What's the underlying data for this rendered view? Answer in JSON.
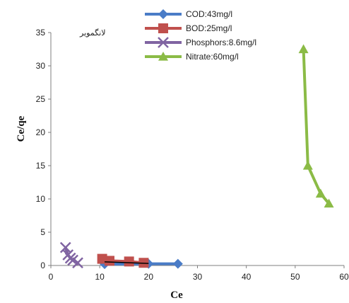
{
  "chart_data": {
    "type": "scatter",
    "annotation": "لانگمویر",
    "xlabel": "Ce",
    "ylabel": "Ce/qe",
    "xlim": [
      0,
      60
    ],
    "ylim": [
      0,
      35
    ],
    "xticks": [
      0,
      10,
      20,
      30,
      40,
      50,
      60
    ],
    "yticks": [
      0,
      5,
      10,
      15,
      20,
      25,
      30,
      35
    ],
    "grid": false,
    "legend_position": "top-center",
    "series": [
      {
        "name": "COD:43mg/l",
        "color": "#4a7cc7",
        "marker": "diamond",
        "x": [
          11,
          20,
          26
        ],
        "y": [
          0.2,
          0.25,
          0.25
        ]
      },
      {
        "name": "BOD:25mg/l",
        "color": "#c0504d",
        "marker": "square",
        "x": [
          10.5,
          12,
          16,
          19
        ],
        "y": [
          1.0,
          0.7,
          0.6,
          0.4
        ]
      },
      {
        "name": "Phosphors:8.6mg/l",
        "color": "#8064a2",
        "marker": "x",
        "x": [
          3,
          3.5,
          4,
          4.5,
          5.5
        ],
        "y": [
          2.7,
          1.6,
          1.1,
          0.8,
          0.4
        ]
      },
      {
        "name": "Nitrate:60mg/l",
        "color": "#8bbb46",
        "marker": "triangle",
        "x": [
          51.7,
          52.6,
          55.2,
          56.9
        ],
        "y": [
          32.5,
          15.0,
          10.8,
          9.3
        ]
      }
    ],
    "trendline": {
      "x": [
        11,
        20
      ],
      "y": [
        0.55,
        0.3
      ],
      "color": "#000000"
    }
  }
}
